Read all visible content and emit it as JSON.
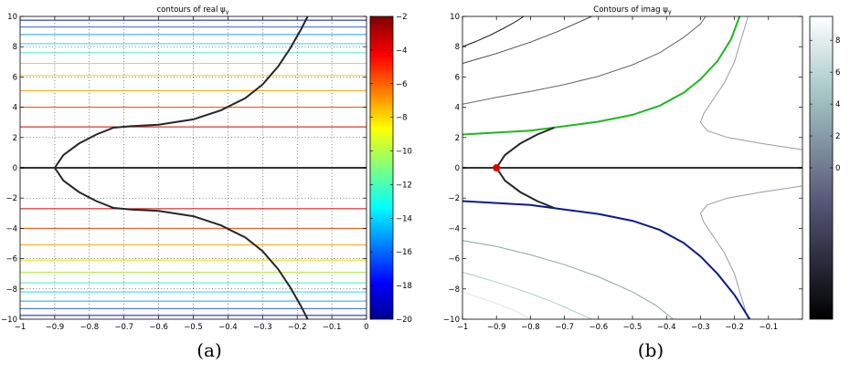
{
  "chart_data": [
    {
      "id": "a",
      "type": "contour",
      "title": "contours of real ψ",
      "title_subscript": "γ",
      "caption": "(a)",
      "xlim": [
        -1,
        0
      ],
      "ylim": [
        -10,
        10
      ],
      "xticks": [
        -1,
        -0.9,
        -0.8,
        -0.7,
        -0.6,
        -0.5,
        -0.4,
        -0.3,
        -0.2,
        -0.1,
        0
      ],
      "xtick_labels": [
        "−1",
        "−0.9",
        "−0.8",
        "−0.7",
        "−0.6",
        "−0.5",
        "−0.4",
        "−0.3",
        "−0.2",
        "−0.1",
        "0"
      ],
      "yticks": [
        -10,
        -8,
        -6,
        -4,
        -2,
        0,
        2,
        4,
        6,
        8,
        10
      ],
      "ytick_labels": [
        "−10",
        "−8",
        "−6",
        "−4",
        "−2",
        "0",
        "2",
        "4",
        "6",
        "8",
        "10"
      ],
      "grid": true,
      "colormap": "jet",
      "colorbar": {
        "range": [
          -20,
          -2
        ],
        "ticks": [
          -20,
          -18,
          -16,
          -14,
          -12,
          -10,
          -8,
          -6,
          -4,
          -2
        ],
        "tick_labels": [
          "−20",
          "−18",
          "−16",
          "−14",
          "−12",
          "−10",
          "−8",
          "−6",
          "−4",
          "−2"
        ]
      },
      "contour_levels_y": [
        {
          "y": 2.7,
          "color": "#d40000"
        },
        {
          "y": 4.0,
          "color": "#f24a00"
        },
        {
          "y": 5.1,
          "color": "#ffa000"
        },
        {
          "y": 6.1,
          "color": "#f0dc00"
        },
        {
          "y": 6.9,
          "color": "#b0ee40"
        },
        {
          "y": 7.6,
          "color": "#40f0b8"
        },
        {
          "y": 8.2,
          "color": "#20d8ff"
        },
        {
          "y": 8.8,
          "color": "#1aa0ff"
        },
        {
          "y": 9.3,
          "color": "#3060ff"
        },
        {
          "y": 9.75,
          "color": "#0010d0"
        }
      ],
      "zero_line_color": "#333333",
      "steepest_path": [
        [
          -0.9,
          0
        ],
        [
          -0.875,
          0.85
        ],
        [
          -0.83,
          1.6
        ],
        [
          -0.78,
          2.2
        ],
        [
          -0.73,
          2.65
        ],
        [
          -0.68,
          2.75
        ],
        [
          -0.6,
          2.85
        ],
        [
          -0.5,
          3.2
        ],
        [
          -0.42,
          3.8
        ],
        [
          -0.35,
          4.6
        ],
        [
          -0.3,
          5.5
        ],
        [
          -0.255,
          6.7
        ],
        [
          -0.22,
          7.9
        ],
        [
          -0.19,
          9.1
        ],
        [
          -0.17,
          10
        ]
      ]
    },
    {
      "id": "b",
      "type": "contour",
      "title": "Contours of imag ψ",
      "title_subscript": "γ",
      "caption": "(b)",
      "xlim": [
        -1,
        0
      ],
      "ylim": [
        -10,
        10
      ],
      "xticks": [
        -1,
        -0.9,
        -0.8,
        -0.7,
        -0.6,
        -0.5,
        -0.4,
        -0.3,
        -0.2,
        -0.1
      ],
      "xtick_labels": [
        "−1",
        "−0.9",
        "−0.8",
        "−0.7",
        "−0.6",
        "−0.5",
        "−0.4",
        "−0.3",
        "−0.2",
        "−0.1"
      ],
      "yticks": [
        -10,
        -8,
        -6,
        -4,
        -2,
        0,
        2,
        4,
        6,
        8,
        10
      ],
      "ytick_labels": [
        "−10",
        "−8",
        "−6",
        "−4",
        "−2",
        "0",
        "2",
        "4",
        "6",
        "8",
        "10"
      ],
      "grid": false,
      "colormap": "bone",
      "colorbar": {
        "range": [
          -9.5,
          9.5
        ],
        "ticks": [
          8,
          6,
          4,
          2,
          0
        ],
        "tick_labels": [
          "8",
          "6",
          "4",
          "2",
          "0"
        ]
      },
      "saddle_point": {
        "x": -0.9,
        "y": 0,
        "color": "#e00000"
      },
      "black_path": [
        [
          -0.9,
          0
        ],
        [
          -0.875,
          0.85
        ],
        [
          -0.83,
          1.6
        ],
        [
          -0.78,
          2.2
        ],
        [
          -0.73,
          2.65
        ]
      ],
      "green_path": {
        "color": "#1fb81f",
        "points": [
          [
            -1,
            2.2
          ],
          [
            -0.8,
            2.45
          ],
          [
            -0.7,
            2.75
          ],
          [
            -0.6,
            3.05
          ],
          [
            -0.5,
            3.5
          ],
          [
            -0.42,
            4.1
          ],
          [
            -0.35,
            4.95
          ],
          [
            -0.3,
            5.85
          ],
          [
            -0.25,
            7.05
          ],
          [
            -0.21,
            8.5
          ],
          [
            -0.185,
            10
          ]
        ]
      },
      "blue_path": {
        "color": "#0a1a90",
        "points": [
          [
            -1,
            -2.2
          ],
          [
            -0.8,
            -2.45
          ],
          [
            -0.7,
            -2.75
          ],
          [
            -0.6,
            -3.05
          ],
          [
            -0.5,
            -3.5
          ],
          [
            -0.42,
            -4.1
          ],
          [
            -0.35,
            -4.95
          ],
          [
            -0.3,
            -5.85
          ],
          [
            -0.25,
            -7.0
          ],
          [
            -0.2,
            -8.4
          ],
          [
            -0.155,
            -10
          ]
        ]
      },
      "other_contours": [
        {
          "color": "#101010",
          "points": [
            [
              -1,
              8.0
            ],
            [
              -0.96,
              8.35
            ],
            [
              -0.92,
              8.75
            ],
            [
              -0.88,
              9.2
            ],
            [
              -0.84,
              9.7
            ],
            [
              -0.82,
              10
            ]
          ]
        },
        {
          "color": "#4a4a55",
          "points": [
            [
              -1,
              6.9
            ],
            [
              -0.9,
              7.55
            ],
            [
              -0.8,
              8.3
            ],
            [
              -0.72,
              9.0
            ],
            [
              -0.65,
              9.7
            ],
            [
              -0.62,
              10
            ]
          ]
        },
        {
          "color": "#666670",
          "points": [
            [
              -1,
              4.2
            ],
            [
              -0.9,
              4.65
            ],
            [
              -0.8,
              5.05
            ],
            [
              -0.7,
              5.5
            ],
            [
              -0.6,
              6.05
            ],
            [
              -0.5,
              6.8
            ],
            [
              -0.42,
              7.6
            ],
            [
              -0.35,
              8.6
            ],
            [
              -0.3,
              9.5
            ],
            [
              -0.285,
              10
            ]
          ]
        },
        {
          "color": "#9a9aa8",
          "points": [
            [
              -0.16,
              10
            ],
            [
              -0.18,
              8.5
            ],
            [
              -0.2,
              7.0
            ],
            [
              -0.23,
              5.6
            ],
            [
              -0.26,
              4.6
            ],
            [
              -0.29,
              3.6
            ],
            [
              -0.3,
              3.0
            ],
            [
              -0.28,
              2.45
            ],
            [
              -0.22,
              2.0
            ],
            [
              -0.12,
              1.6
            ],
            [
              0,
              1.2
            ]
          ]
        },
        {
          "color": "#9a9aa8",
          "points": [
            [
              0,
              -1.2
            ],
            [
              -0.12,
              -1.6
            ],
            [
              -0.22,
              -2.0
            ],
            [
              -0.28,
              -2.45
            ],
            [
              -0.3,
              -3.0
            ],
            [
              -0.29,
              -3.6
            ],
            [
              -0.26,
              -4.6
            ],
            [
              -0.23,
              -5.6
            ],
            [
              -0.2,
              -7.0
            ],
            [
              -0.18,
              -8.5
            ],
            [
              -0.16,
              -10
            ]
          ]
        },
        {
          "color": "#8aa8a8",
          "points": [
            [
              -1,
              -4.8
            ],
            [
              -0.9,
              -5.2
            ],
            [
              -0.8,
              -5.75
            ],
            [
              -0.7,
              -6.4
            ],
            [
              -0.6,
              -7.2
            ],
            [
              -0.5,
              -8.2
            ],
            [
              -0.43,
              -9.1
            ],
            [
              -0.38,
              -10
            ]
          ]
        },
        {
          "color": "#b0cccc",
          "points": [
            [
              -1,
              -6.9
            ],
            [
              -0.9,
              -7.55
            ],
            [
              -0.8,
              -8.3
            ],
            [
              -0.72,
              -9.0
            ],
            [
              -0.65,
              -9.7
            ],
            [
              -0.62,
              -10
            ]
          ]
        },
        {
          "color": "#dfe8e8",
          "points": [
            [
              -1,
              -8.2
            ],
            [
              -0.92,
              -8.8
            ],
            [
              -0.85,
              -9.4
            ],
            [
              -0.8,
              -10
            ]
          ]
        }
      ]
    }
  ]
}
